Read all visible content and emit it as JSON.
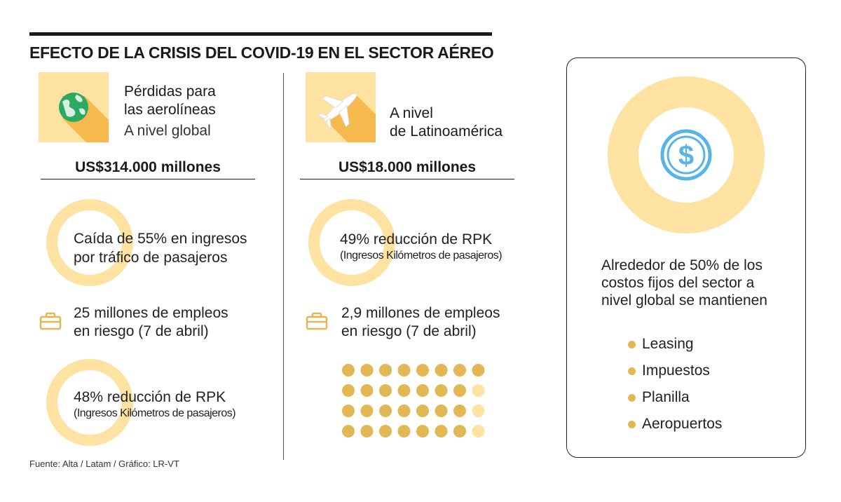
{
  "title": "EFECTO DE LA CRISIS DEL COVID-19 EN EL SECTOR AÉREO",
  "colors": {
    "blue": "#58b4e6",
    "light_yellow": "#fde2a2",
    "gold": "#e2b854",
    "dark": "#1a1a1a"
  },
  "global": {
    "icon": "globe-icon",
    "heading_line1": "Pérdidas para",
    "heading_line2": "las aerolíneas",
    "subheading": "A nivel global",
    "amount": "US$314.000 millones",
    "revenue_drop": {
      "percent": 55,
      "line1": "Caída de 55% en ingresos",
      "line2": "por tráfico de pasajeros"
    },
    "jobs": {
      "icon": "briefcase-icon",
      "line1": "25 millones de empleos",
      "line2": "en riesgo (7 de abril)"
    },
    "rpk": {
      "percent": 48,
      "line1": "48% reducción de RPK",
      "line2": "(Ingresos Kilómetros de pasajeros)"
    }
  },
  "latam": {
    "icon": "airplane-icon",
    "heading_line1": "A nivel",
    "heading_line2": "de Latinoamérica",
    "amount": "US$18.000 millones",
    "rpk": {
      "percent": 49,
      "line1": "49% reducción de RPK",
      "line2": "(Ingresos Kilómetros de pasajeros)"
    },
    "jobs": {
      "icon": "briefcase-icon",
      "line1": "2,9 millones de empleos",
      "line2": "en riesgo (7 de abril)"
    },
    "dot_grid": {
      "rows": 4,
      "cols": 8,
      "filled": 29
    }
  },
  "fixed_costs": {
    "icon": "dollar-icon",
    "percent": 50,
    "line1": "Alrededor de 50% de los",
    "line2": "costos fijos del sector a",
    "line3": "nivel global se mantienen",
    "items": [
      "Leasing",
      "Impuestos",
      "Planilla",
      "Aeropuertos"
    ]
  },
  "source": "Fuente: Alta / Latam / Gráfico: LR-VT"
}
